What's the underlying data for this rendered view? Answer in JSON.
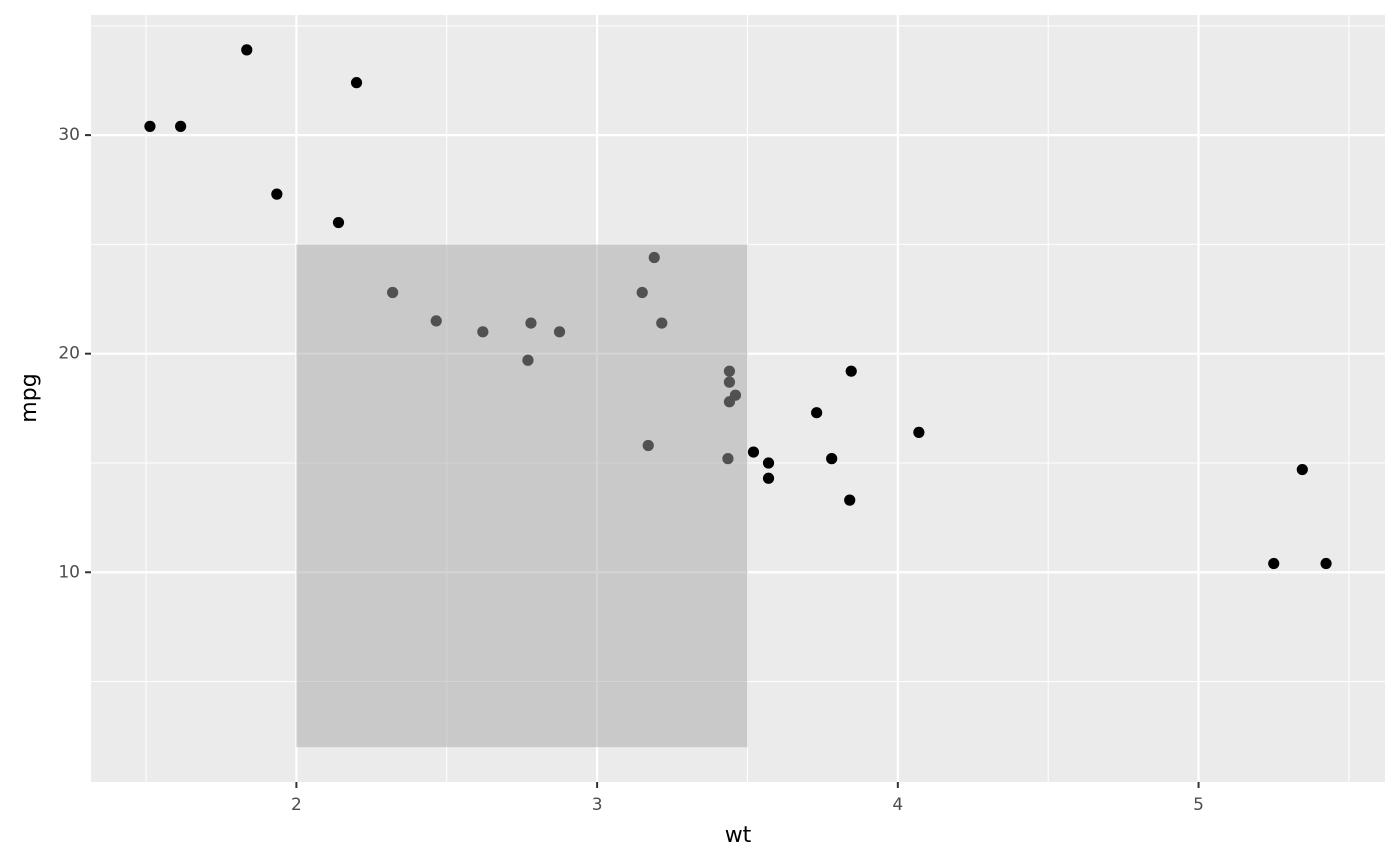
{
  "chart_data": {
    "type": "scatter",
    "x_label": "wt",
    "y_label": "mpg",
    "x": [
      2.62,
      2.875,
      2.32,
      3.215,
      3.44,
      3.46,
      3.57,
      3.19,
      3.15,
      3.44,
      3.44,
      4.07,
      3.73,
      3.78,
      5.25,
      5.424,
      5.345,
      2.2,
      1.615,
      1.835,
      2.465,
      3.52,
      3.435,
      3.84,
      3.845,
      1.935,
      2.14,
      1.513,
      3.17,
      2.77,
      3.57,
      2.78
    ],
    "values": [
      21.0,
      21.0,
      22.8,
      21.4,
      18.7,
      18.1,
      14.3,
      24.4,
      22.8,
      19.2,
      17.8,
      16.4,
      17.3,
      15.2,
      10.4,
      10.4,
      14.7,
      32.4,
      30.4,
      33.9,
      21.5,
      15.5,
      15.2,
      13.3,
      19.2,
      27.3,
      26.0,
      30.4,
      15.8,
      19.7,
      15.0,
      21.4
    ],
    "color": "#000000",
    "rect": {
      "xmin": 2,
      "xmax": 3.5,
      "ymin": 2,
      "ymax": 25,
      "color": "#a5a5a5",
      "alpha": 0.49
    },
    "xlim": [
      1.317,
      5.62
    ],
    "ylim": [
      0.405,
      35.495
    ],
    "xticks": [
      2,
      3,
      4,
      5
    ],
    "yticks": [
      10,
      20,
      30
    ],
    "xminor": [
      1.5,
      2.5,
      3.5,
      4.5,
      5.5
    ],
    "yminor": [
      5,
      15,
      25,
      35
    ],
    "grid": true
  }
}
